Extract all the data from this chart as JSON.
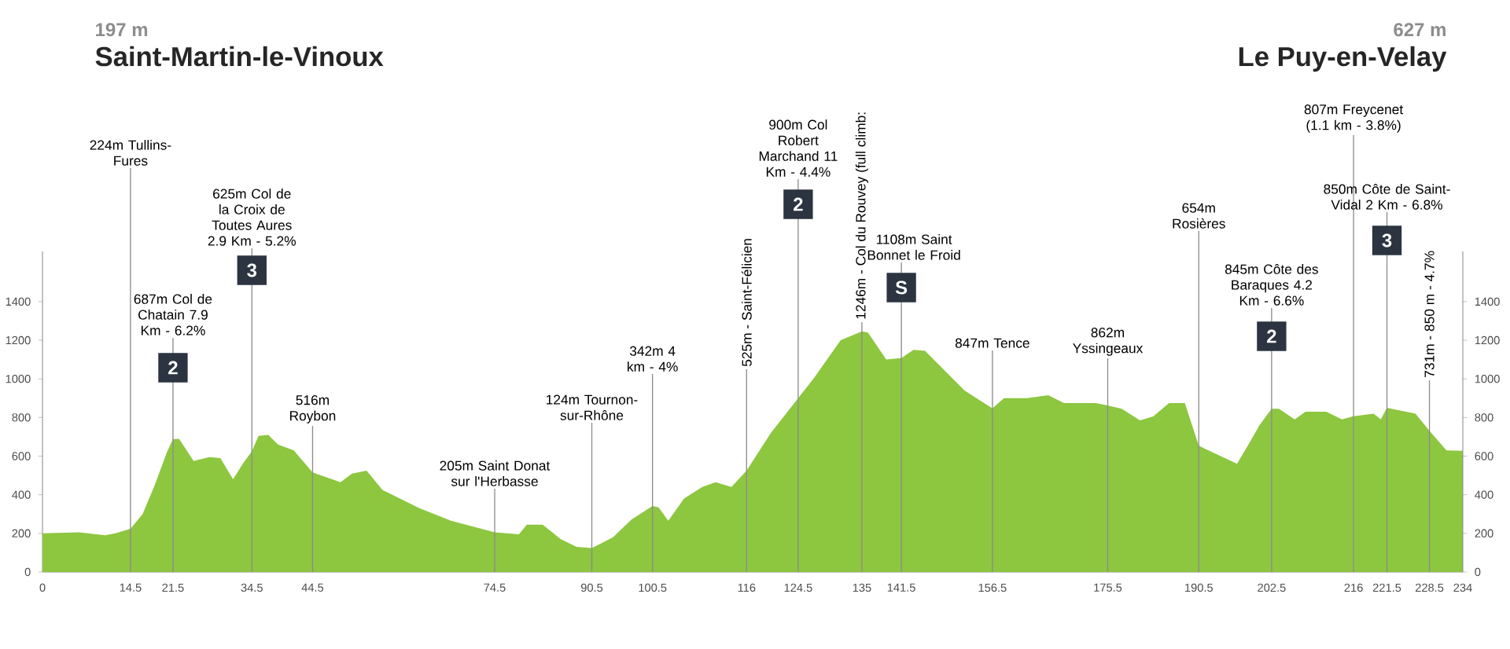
{
  "chart_data": {
    "type": "area",
    "color": "#8dc63f",
    "x": [
      0,
      6,
      10.3,
      12,
      14.5,
      16.5,
      18.5,
      20.5,
      21.5,
      22.5,
      24.9,
      27.5,
      29.3,
      31.4,
      33,
      34.5,
      35.6,
      37.2,
      38.8,
      41.4,
      44.5,
      49.1,
      51,
      53.4,
      56,
      62.1,
      67.3,
      74.5,
      78.5,
      79.8,
      82.4,
      85.4,
      88,
      90.5,
      94,
      97,
      100.5,
      101.5,
      103.1,
      105.7,
      108.7,
      110.9,
      113.5,
      116,
      120,
      124.5,
      127,
      131.5,
      135,
      136,
      139,
      141.5,
      143.5,
      145.4,
      151.9,
      156.5,
      158.4,
      162.2,
      165.7,
      168.3,
      173.5,
      175.5,
      177.8,
      180.8,
      183,
      185.6,
      188.2,
      190.5,
      192.1,
      196.8,
      198.5,
      200.5,
      202.5,
      203.7,
      206.3,
      208.1,
      211.5,
      214.1,
      216,
      219.3,
      220.5,
      221.5,
      226.2,
      228.5,
      231.3,
      234
    ],
    "values": [
      200,
      205,
      190,
      200,
      224,
      300,
      450,
      620,
      687,
      690,
      575,
      595,
      590,
      480,
      560,
      625,
      705,
      710,
      660,
      630,
      516,
      465,
      510,
      525,
      425,
      330,
      265,
      205,
      195,
      245,
      245,
      170,
      130,
      124,
      180,
      270,
      342,
      335,
      265,
      380,
      440,
      465,
      440,
      525,
      720,
      900,
      1000,
      1200,
      1246,
      1240,
      1100,
      1108,
      1150,
      1145,
      940,
      847,
      900,
      900,
      915,
      875,
      875,
      862,
      845,
      785,
      805,
      875,
      875,
      654,
      630,
      560,
      650,
      760,
      845,
      845,
      790,
      830,
      830,
      790,
      807,
      820,
      790,
      850,
      820,
      731,
      630,
      627
    ],
    "xlim": [
      0,
      234
    ],
    "ylim": [
      0,
      1660
    ],
    "xticks": [
      0,
      14.5,
      21.5,
      34.5,
      44.5,
      74.5,
      90.5,
      100.5,
      116,
      124.5,
      135,
      141.5,
      156.5,
      175.5,
      190.5,
      202.5,
      216,
      221.5,
      228.5,
      234
    ],
    "yticks": [
      0,
      200,
      400,
      600,
      800,
      1000,
      1200,
      1400
    ],
    "y2lim": [
      0,
      1660
    ],
    "y2ticks": [
      0,
      200,
      400,
      600,
      800,
      1000,
      1200,
      1400
    ],
    "ref_lines": [
      {
        "axis": "x",
        "value": 14.5,
        "label": "224m Tullins-Fures"
      },
      {
        "axis": "x",
        "value": 21.5,
        "label": "687m Col de Chatain 7.9 Km - 6.2%"
      },
      {
        "axis": "x",
        "value": 34.5,
        "label": "625m Col de la Croix de Toutes Aures 2.9 Km - 5.2%"
      },
      {
        "axis": "x",
        "value": 44.5,
        "label": "516m Roybon"
      },
      {
        "axis": "x",
        "value": 74.5,
        "label": "205m Saint Donat sur l'Herbasse"
      },
      {
        "axis": "x",
        "value": 90.5,
        "label": "124m Tournon-sur-Rhône"
      },
      {
        "axis": "x",
        "value": 100.5,
        "label": "342m 4 km - 4%"
      },
      {
        "axis": "x",
        "value": 116,
        "label": "525m - Saint-Félicien"
      },
      {
        "axis": "x",
        "value": 124.5,
        "label": "900m Col Robert Marchand 11 Km - 4.4%"
      },
      {
        "axis": "x",
        "value": 135,
        "label": "1246m - Col du Rouvey (full climb:"
      },
      {
        "axis": "x",
        "value": 141.5,
        "label": "1108m Saint Bonnet le Froid"
      },
      {
        "axis": "x",
        "value": 156.5,
        "label": "847m Tence"
      },
      {
        "axis": "x",
        "value": 175.5,
        "label": "862m Yssingeaux"
      },
      {
        "axis": "x",
        "value": 190.5,
        "label": "654m Rosières"
      },
      {
        "axis": "x",
        "value": 202.5,
        "label": "845m Côte des Baraques 4.2 Km - 6.6%"
      },
      {
        "axis": "x",
        "value": 216,
        "label": "807m Freycenet (1.1 km - 3.8%)"
      },
      {
        "axis": "x",
        "value": 221.5,
        "label": "850m Côte de Saint-Vidal 2 Km - 6.8%"
      },
      {
        "axis": "x",
        "value": 228.5,
        "label": "731m - 850 m - 4.7%"
      }
    ],
    "annotations": [
      "197 m",
      "Saint-Martin-le-Vinoux",
      "627 m",
      "Le Puy-en-Velay",
      {
        "text": "2",
        "x": 21.5
      },
      {
        "text": "3",
        "x": 34.5
      },
      {
        "text": "2",
        "x": 124.5
      },
      {
        "text": "S",
        "x": 141.5
      },
      {
        "text": "2",
        "x": 202.5
      },
      {
        "text": "3",
        "x": 221.5
      }
    ]
  }
}
